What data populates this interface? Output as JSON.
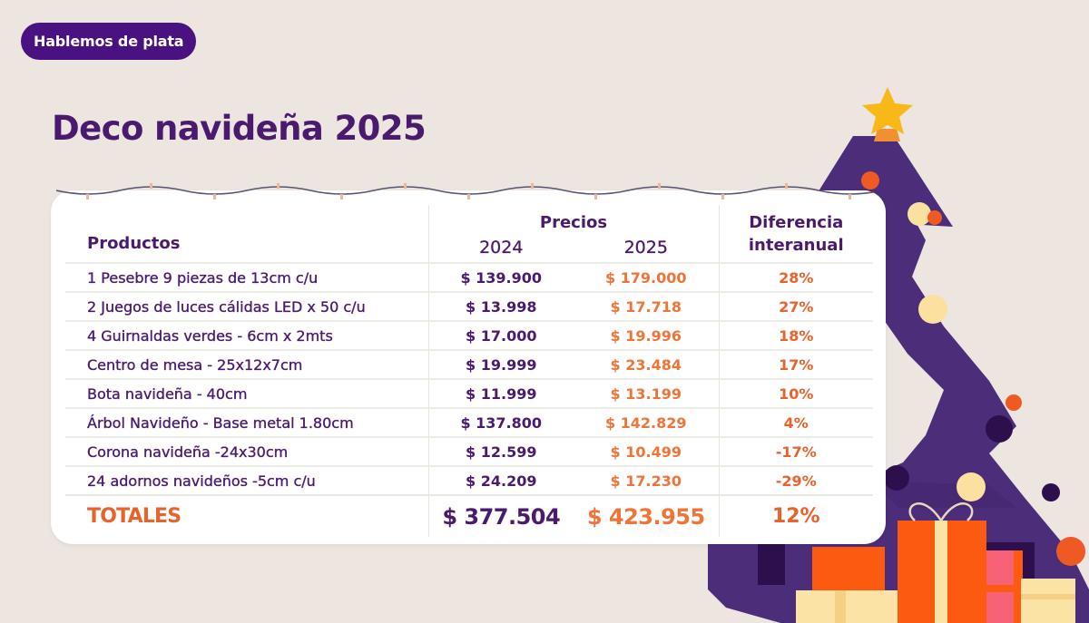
{
  "badge": {
    "label": "Hablemos de plata"
  },
  "title": "Deco navideña 2025",
  "colors": {
    "purple": "#4a1a6e",
    "badge_bg": "#4a1180",
    "orange": "#ee7438",
    "tree": "#4b2d7a",
    "star": "#f7b818",
    "background": "#ece5e0"
  },
  "table": {
    "headers": {
      "productos": "Productos",
      "precios": "Precios",
      "year_2024": "2024",
      "year_2025": "2025",
      "diferencia_line1": "Diferencia",
      "diferencia_line2": "interanual"
    },
    "rows": [
      {
        "producto": "1 Pesebre 9 piezas de 13cm c/u",
        "p2024": "$ 139.900",
        "p2025": "$ 179.000",
        "dif": "28%"
      },
      {
        "producto": "2 Juegos de luces cálidas LED x 50 c/u",
        "p2024": "$ 13.998",
        "p2025": "$ 17.718",
        "dif": "27%"
      },
      {
        "producto": "4 Guirnaldas verdes - 6cm x 2mts",
        "p2024": "$ 17.000",
        "p2025": "$ 19.996",
        "dif": "18%"
      },
      {
        "producto": "Centro de mesa - 25x12x7cm",
        "p2024": "$ 19.999",
        "p2025": "$ 23.484",
        "dif": "17%"
      },
      {
        "producto": "Bota navideña - 40cm",
        "p2024": "$ 11.999",
        "p2025": "$ 13.199",
        "dif": "10%"
      },
      {
        "producto": "Árbol Navideño - Base metal 1.80cm",
        "p2024": "$ 137.800",
        "p2025": "$ 142.829",
        "dif": "4%"
      },
      {
        "producto": "Corona navideña -24x30cm",
        "p2024": "$ 12.599",
        "p2025": "$ 10.499",
        "dif": "-17%"
      },
      {
        "producto": "24 adornos navideños -5cm c/u",
        "p2024": "$ 24.209",
        "p2025": "$ 17.230",
        "dif": "-29%"
      }
    ],
    "totals": {
      "label": "TOTALES",
      "p2024": "$ 377.504",
      "p2025": "$ 423.955",
      "dif": "12%"
    }
  },
  "decorations": {
    "tree_icon": "christmas-tree-icon",
    "star_icon": "star-icon",
    "gifts_icon": "gift-boxes-icon",
    "lights_icon": "string-lights-icon"
  }
}
